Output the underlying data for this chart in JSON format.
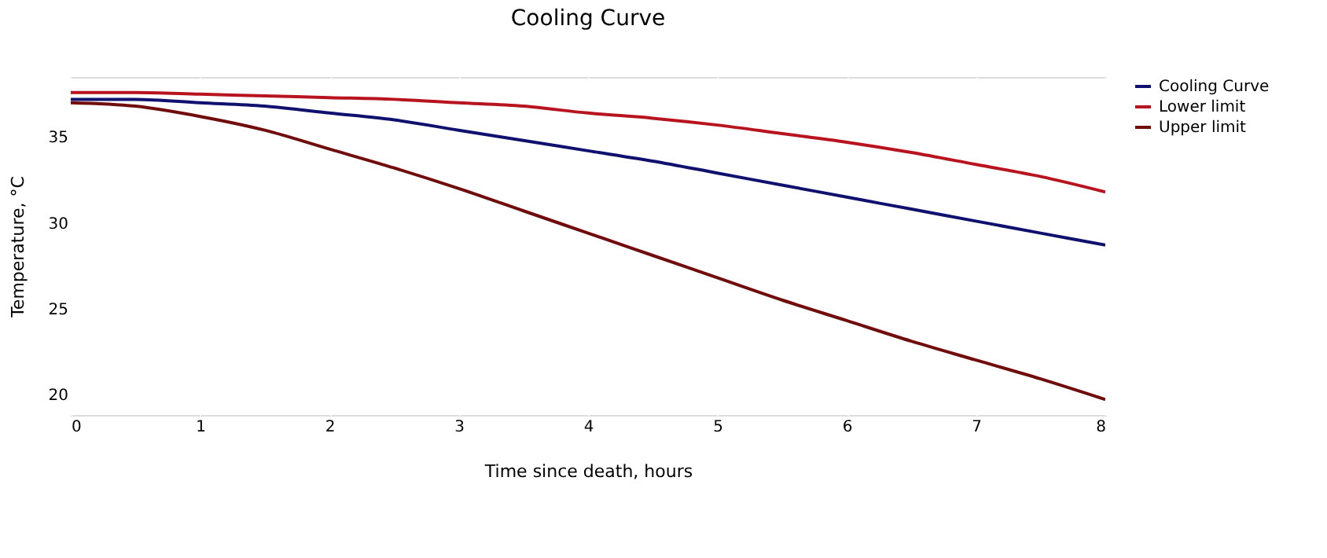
{
  "chart_data": {
    "type": "line",
    "title": "Cooling Curve",
    "xlabel": "Time since death, hours",
    "ylabel": "Temperature, °C",
    "xlim": [
      0,
      8
    ],
    "xticks": [
      0,
      1,
      2,
      3,
      4,
      5,
      6,
      7,
      8
    ],
    "ylim": [
      18.8,
      38.5
    ],
    "yticks": [
      20,
      25,
      30,
      35
    ],
    "grid": true,
    "legend": "top right",
    "line_style": "solid",
    "marker": "none",
    "x": [
      0,
      0.5,
      1,
      1.5,
      2,
      2.5,
      3,
      3.5,
      4,
      4.5,
      5,
      5.5,
      6,
      6.5,
      7,
      7.5,
      8
    ],
    "series": [
      {
        "name": "Cooling Curve",
        "color": "#10106e",
        "values": [
          37.2,
          37.2,
          37.0,
          36.8,
          36.4,
          36.0,
          35.4,
          34.8,
          34.2,
          33.6,
          32.9,
          32.2,
          31.5,
          30.8,
          30.1,
          29.4,
          28.7
        ]
      },
      {
        "name": "Lower limit",
        "color": "#b81420",
        "values": [
          37.6,
          37.6,
          37.5,
          37.4,
          37.3,
          37.2,
          37.0,
          36.8,
          36.4,
          36.1,
          35.7,
          35.2,
          34.7,
          34.1,
          33.4,
          32.7,
          31.8
        ]
      },
      {
        "name": "Upper limit",
        "color": "#700c0c",
        "values": [
          37.0,
          36.8,
          36.2,
          35.4,
          34.3,
          33.2,
          32.0,
          30.7,
          29.4,
          28.1,
          26.8,
          25.5,
          24.3,
          23.1,
          22.0,
          20.9,
          19.7
        ]
      }
    ]
  }
}
